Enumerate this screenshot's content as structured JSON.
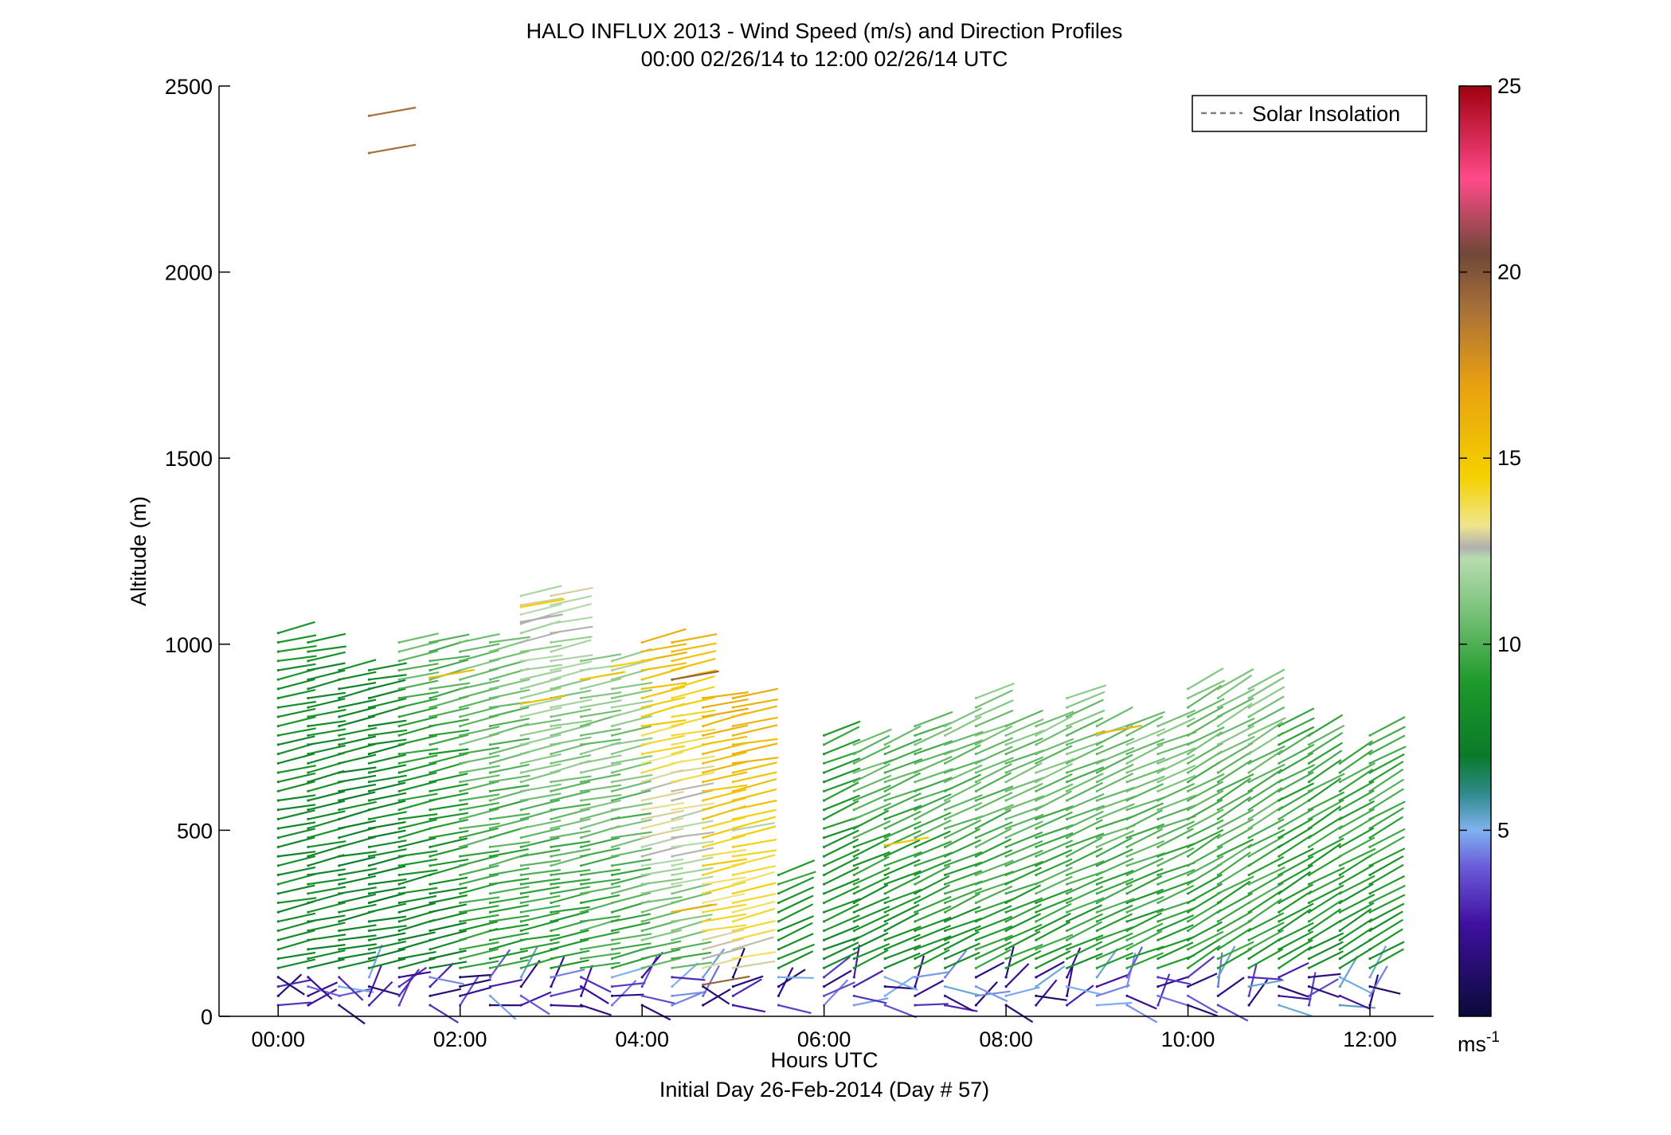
{
  "chart_data": {
    "type": "scatter",
    "title": "HALO INFLUX 2013 - Wind Speed (m/s) and Direction Profiles",
    "subtitle": "00:00 02/26/14 to 12:00 02/26/14  UTC",
    "xlabel": "Hours UTC",
    "xlabel2": "Initial Day 26-Feb-2014 (Day # 57)",
    "ylabel": "Altitude (m)",
    "xlim": [
      -0.65,
      12.7
    ],
    "ylim": [
      0,
      2500
    ],
    "x_ticks": [
      0,
      2,
      4,
      6,
      8,
      10,
      12
    ],
    "x_tick_labels": [
      "00:00",
      "02:00",
      "04:00",
      "06:00",
      "08:00",
      "10:00",
      "12:00"
    ],
    "y_ticks": [
      0,
      500,
      1000,
      1500,
      2000,
      2500
    ],
    "y_tick_labels": [
      "0",
      "500",
      "1000",
      "1500",
      "2000",
      "2500"
    ],
    "grid": false,
    "legend": {
      "position": "top-right",
      "entries": [
        {
          "label": "Solar Insolation",
          "style": "dashed",
          "color": "#808080"
        }
      ]
    },
    "colorbar": {
      "range": [
        0,
        25
      ],
      "ticks": [
        5,
        10,
        15,
        20,
        25
      ],
      "tick_labels": [
        "5",
        "10",
        "15",
        "20",
        "25"
      ],
      "unit_label": "ms",
      "unit_exponent": "-1",
      "stops": [
        {
          "v": 0,
          "color": "#0a0a3a"
        },
        {
          "v": 2.5,
          "color": "#4010a0"
        },
        {
          "v": 4,
          "color": "#6a5ad8"
        },
        {
          "v": 5,
          "color": "#7fb2f0"
        },
        {
          "v": 6,
          "color": "#2e8a8a"
        },
        {
          "v": 7,
          "color": "#0a7a2a"
        },
        {
          "v": 9,
          "color": "#1e9a2a"
        },
        {
          "v": 11,
          "color": "#7fc47f"
        },
        {
          "v": 12.3,
          "color": "#b8dcb0"
        },
        {
          "v": 12.6,
          "color": "#b0b0b0"
        },
        {
          "v": 13.2,
          "color": "#f0e68c"
        },
        {
          "v": 14.5,
          "color": "#f5d000"
        },
        {
          "v": 17,
          "color": "#e8a010"
        },
        {
          "v": 19,
          "color": "#a87038"
        },
        {
          "v": 20.5,
          "color": "#704838"
        },
        {
          "v": 22.5,
          "color": "#ff4a8a"
        },
        {
          "v": 25,
          "color": "#a00010"
        }
      ]
    },
    "profiles": [
      {
        "t": 0.0,
        "top": 1030,
        "spd_low": 8.0,
        "spd_high": 8.5,
        "dir": "w"
      },
      {
        "t": 0.33,
        "top": 1015,
        "spd_low": 8.0,
        "spd_high": 8.5,
        "dir": "w"
      },
      {
        "t": 0.67,
        "top": 940,
        "spd_low": 7.5,
        "spd_high": 8.0,
        "dir": "w"
      },
      {
        "t": 1.0,
        "top": 940,
        "spd_low": 7.5,
        "spd_high": 8.0,
        "dir": "w"
      },
      {
        "t": 1.33,
        "top": 1015,
        "spd_low": 7.5,
        "spd_high": 10.5,
        "dir": "w"
      },
      {
        "t": 1.67,
        "top": 1015,
        "spd_low": 7.5,
        "spd_high": 10.5,
        "dir": "w"
      },
      {
        "t": 2.0,
        "top": 1015,
        "spd_low": 9.0,
        "spd_high": 11.0,
        "dir": "w"
      },
      {
        "t": 2.33,
        "top": 1015,
        "spd_low": 9.0,
        "spd_high": 11.0,
        "dir": "w"
      },
      {
        "t": 2.67,
        "top": 1135,
        "spd_low": 9.0,
        "spd_high": 12.5,
        "dir": "w"
      },
      {
        "t": 3.0,
        "top": 1135,
        "spd_low": 9.0,
        "spd_high": 12.5,
        "dir": "w"
      },
      {
        "t": 3.33,
        "top": 970,
        "spd_low": 9.5,
        "spd_high": 11.5,
        "dir": "w"
      },
      {
        "t": 3.67,
        "top": 970,
        "spd_low": 9.5,
        "spd_high": 11.5,
        "dir": "w"
      },
      {
        "t": 4.0,
        "top": 1015,
        "spd_low": 10.0,
        "spd_high": 16.0,
        "dir": "w"
      },
      {
        "t": 4.33,
        "top": 1015,
        "spd_low": 10.0,
        "spd_high": 16.0,
        "dir": "w"
      },
      {
        "t": 4.67,
        "top": 870,
        "spd_low": 13.0,
        "spd_high": 16.5,
        "dir": "w"
      },
      {
        "t": 5.0,
        "top": 870,
        "spd_low": 13.0,
        "spd_high": 16.5,
        "dir": "w"
      },
      {
        "t": 5.5,
        "top": 380,
        "spd_low": 8.0,
        "spd_high": 9.0,
        "dir": "wnw"
      },
      {
        "t": 6.0,
        "top": 760,
        "spd_low": 8.0,
        "spd_high": 9.5,
        "dir": "wnw"
      },
      {
        "t": 6.33,
        "top": 740,
        "spd_low": 8.0,
        "spd_high": 10.5,
        "dir": "wnw"
      },
      {
        "t": 6.67,
        "top": 750,
        "spd_low": 8.0,
        "spd_high": 10.5,
        "dir": "wnw"
      },
      {
        "t": 7.0,
        "top": 780,
        "spd_low": 8.5,
        "spd_high": 10.5,
        "dir": "wnw"
      },
      {
        "t": 7.33,
        "top": 780,
        "spd_low": 8.5,
        "spd_high": 11.0,
        "dir": "wnw"
      },
      {
        "t": 7.67,
        "top": 860,
        "spd_low": 9.0,
        "spd_high": 11.0,
        "dir": "wnw"
      },
      {
        "t": 8.0,
        "top": 800,
        "spd_low": 9.0,
        "spd_high": 11.0,
        "dir": "wnw"
      },
      {
        "t": 8.33,
        "top": 800,
        "spd_low": 9.0,
        "spd_high": 11.0,
        "dir": "wnw"
      },
      {
        "t": 8.67,
        "top": 860,
        "spd_low": 9.0,
        "spd_high": 11.0,
        "dir": "wnw"
      },
      {
        "t": 9.0,
        "top": 780,
        "spd_low": 9.0,
        "spd_high": 11.0,
        "dir": "wnw"
      },
      {
        "t": 9.33,
        "top": 780,
        "spd_low": 9.0,
        "spd_high": 11.0,
        "dir": "wnw"
      },
      {
        "t": 9.67,
        "top": 780,
        "spd_low": 9.0,
        "spd_high": 11.0,
        "dir": "wnw"
      },
      {
        "t": 10.0,
        "top": 880,
        "spd_low": 9.0,
        "spd_high": 11.0,
        "dir": "nw"
      },
      {
        "t": 10.33,
        "top": 880,
        "spd_low": 9.0,
        "spd_high": 11.0,
        "dir": "nw"
      },
      {
        "t": 10.67,
        "top": 880,
        "spd_low": 9.0,
        "spd_high": 11.0,
        "dir": "nw"
      },
      {
        "t": 11.0,
        "top": 800,
        "spd_low": 8.5,
        "spd_high": 10.0,
        "dir": "nw"
      },
      {
        "t": 11.33,
        "top": 760,
        "spd_low": 8.5,
        "spd_high": 10.0,
        "dir": "nw"
      },
      {
        "t": 11.67,
        "top": 700,
        "spd_low": 8.5,
        "spd_high": 10.0,
        "dir": "nw"
      },
      {
        "t": 12.0,
        "top": 760,
        "spd_low": 8.5,
        "spd_high": 10.0,
        "dir": "nw"
      }
    ],
    "isolated_points": [
      {
        "t": 1.0,
        "alt": 2420,
        "spd": 19.0
      },
      {
        "t": 1.0,
        "alt": 2320,
        "spd": 19.0
      },
      {
        "t": 1.67,
        "alt": 910,
        "spd": 15.5
      },
      {
        "t": 2.67,
        "alt": 1100,
        "spd": 14.5
      },
      {
        "t": 2.67,
        "alt": 1060,
        "spd": 12.6
      },
      {
        "t": 2.67,
        "alt": 840,
        "spd": 15.5
      },
      {
        "t": 3.33,
        "alt": 905,
        "spd": 15.0
      },
      {
        "t": 3.67,
        "alt": 940,
        "spd": 14.5
      },
      {
        "t": 4.33,
        "alt": 905,
        "spd": 19.5
      },
      {
        "t": 4.33,
        "alt": 280,
        "spd": 16.0
      },
      {
        "t": 4.67,
        "alt": 85,
        "spd": 19.5
      },
      {
        "t": 5.0,
        "alt": 500,
        "spd": 12.4
      },
      {
        "t": 6.67,
        "alt": 460,
        "spd": 15.0
      },
      {
        "t": 9.0,
        "alt": 760,
        "spd": 16.0
      }
    ]
  }
}
